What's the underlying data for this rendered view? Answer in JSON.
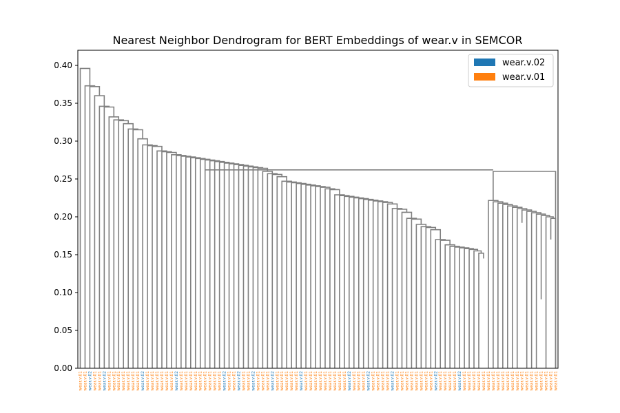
{
  "chart_data": {
    "type": "dendrogram",
    "title": "Nearest Neighbor Dendrogram for BERT Embeddings of wear.v in SEMCOR",
    "xlabel": "",
    "ylabel": "",
    "ylim": [
      0,
      0.42
    ],
    "yticks": [
      "0.00",
      "0.05",
      "0.10",
      "0.15",
      "0.20",
      "0.25",
      "0.30",
      "0.35",
      "0.40"
    ],
    "grid": false,
    "legend": {
      "placement": "top-right",
      "entries": [
        {
          "name": "wear.v.02",
          "color": "#1f77b4"
        },
        {
          "name": "wear.v.01",
          "color": "#ff7f0e"
        }
      ]
    },
    "colors": {
      "line": "#808080",
      "axis": "#000000"
    },
    "leaves": [
      {
        "label": "wear.v.01",
        "sense": "01"
      },
      {
        "label": "wear.v.01",
        "sense": "01"
      },
      {
        "label": "wear.v.02",
        "sense": "02"
      },
      {
        "label": "wear.v.01",
        "sense": "01"
      },
      {
        "label": "wear.v.01",
        "sense": "01"
      },
      {
        "label": "wear.v.02",
        "sense": "02"
      },
      {
        "label": "wear.v.01",
        "sense": "01"
      },
      {
        "label": "wear.v.01",
        "sense": "01"
      },
      {
        "label": "wear.v.01",
        "sense": "01"
      },
      {
        "label": "wear.v.01",
        "sense": "01"
      },
      {
        "label": "wear.v.01",
        "sense": "01"
      },
      {
        "label": "wear.v.01",
        "sense": "01"
      },
      {
        "label": "wear.v.01",
        "sense": "01"
      },
      {
        "label": "wear.v.02",
        "sense": "02"
      },
      {
        "label": "wear.v.01",
        "sense": "01"
      },
      {
        "label": "wear.v.01",
        "sense": "01"
      },
      {
        "label": "wear.v.01",
        "sense": "01"
      },
      {
        "label": "wear.v.01",
        "sense": "01"
      },
      {
        "label": "wear.v.01",
        "sense": "01"
      },
      {
        "label": "wear.v.01",
        "sense": "01"
      },
      {
        "label": "wear.v.02",
        "sense": "02"
      },
      {
        "label": "wear.v.01",
        "sense": "01"
      },
      {
        "label": "wear.v.01",
        "sense": "01"
      },
      {
        "label": "wear.v.01",
        "sense": "01"
      },
      {
        "label": "wear.v.01",
        "sense": "01"
      },
      {
        "label": "wear.v.01",
        "sense": "01"
      },
      {
        "label": "wear.v.01",
        "sense": "01"
      },
      {
        "label": "wear.v.01",
        "sense": "01"
      },
      {
        "label": "wear.v.01",
        "sense": "01"
      },
      {
        "label": "wear.v.01",
        "sense": "01"
      },
      {
        "label": "wear.v.02",
        "sense": "02"
      },
      {
        "label": "wear.v.01",
        "sense": "01"
      },
      {
        "label": "wear.v.01",
        "sense": "01"
      },
      {
        "label": "wear.v.02",
        "sense": "02"
      },
      {
        "label": "wear.v.01",
        "sense": "01"
      },
      {
        "label": "wear.v.01",
        "sense": "01"
      },
      {
        "label": "wear.v.02",
        "sense": "02"
      },
      {
        "label": "wear.v.01",
        "sense": "01"
      },
      {
        "label": "wear.v.01",
        "sense": "01"
      },
      {
        "label": "wear.v.01",
        "sense": "01"
      },
      {
        "label": "wear.v.02",
        "sense": "02"
      },
      {
        "label": "wear.v.01",
        "sense": "01"
      },
      {
        "label": "wear.v.01",
        "sense": "01"
      },
      {
        "label": "wear.v.01",
        "sense": "01"
      },
      {
        "label": "wear.v.01",
        "sense": "01"
      },
      {
        "label": "wear.v.01",
        "sense": "01"
      },
      {
        "label": "wear.v.02",
        "sense": "02"
      },
      {
        "label": "wear.v.01",
        "sense": "01"
      },
      {
        "label": "wear.v.01",
        "sense": "01"
      },
      {
        "label": "wear.v.01",
        "sense": "01"
      },
      {
        "label": "wear.v.01",
        "sense": "01"
      },
      {
        "label": "wear.v.01",
        "sense": "01"
      },
      {
        "label": "wear.v.01",
        "sense": "01"
      },
      {
        "label": "wear.v.01",
        "sense": "01"
      },
      {
        "label": "wear.v.01",
        "sense": "01"
      },
      {
        "label": "wear.v.01",
        "sense": "01"
      },
      {
        "label": "wear.v.02",
        "sense": "02"
      },
      {
        "label": "wear.v.01",
        "sense": "01"
      },
      {
        "label": "wear.v.01",
        "sense": "01"
      },
      {
        "label": "wear.v.01",
        "sense": "01"
      },
      {
        "label": "wear.v.02",
        "sense": "02"
      },
      {
        "label": "wear.v.01",
        "sense": "01"
      },
      {
        "label": "wear.v.01",
        "sense": "01"
      },
      {
        "label": "wear.v.01",
        "sense": "01"
      },
      {
        "label": "wear.v.01",
        "sense": "01"
      },
      {
        "label": "wear.v.02",
        "sense": "02"
      },
      {
        "label": "wear.v.01",
        "sense": "01"
      },
      {
        "label": "wear.v.01",
        "sense": "01"
      },
      {
        "label": "wear.v.01",
        "sense": "01"
      },
      {
        "label": "wear.v.01",
        "sense": "01"
      },
      {
        "label": "wear.v.01",
        "sense": "01"
      },
      {
        "label": "wear.v.01",
        "sense": "01"
      },
      {
        "label": "wear.v.01",
        "sense": "01"
      },
      {
        "label": "wear.v.01",
        "sense": "01"
      },
      {
        "label": "wear.v.02",
        "sense": "02"
      },
      {
        "label": "wear.v.01",
        "sense": "01"
      },
      {
        "label": "wear.v.01",
        "sense": "01"
      },
      {
        "label": "wear.v.01",
        "sense": "01"
      },
      {
        "label": "wear.v.01",
        "sense": "01"
      },
      {
        "label": "wear.v.02",
        "sense": "02"
      },
      {
        "label": "wear.v.01",
        "sense": "01"
      },
      {
        "label": "wear.v.01",
        "sense": "01"
      },
      {
        "label": "wear.v.01",
        "sense": "01"
      },
      {
        "label": "wear.v.01",
        "sense": "01"
      },
      {
        "label": "wear.v.01",
        "sense": "01"
      },
      {
        "label": "wear.v.01",
        "sense": "01"
      },
      {
        "label": "wear.v.01",
        "sense": "01"
      },
      {
        "label": "wear.v.01",
        "sense": "01"
      },
      {
        "label": "wear.v.01",
        "sense": "01"
      },
      {
        "label": "wear.v.01",
        "sense": "01"
      },
      {
        "label": "wear.v.01",
        "sense": "01"
      },
      {
        "label": "wear.v.01",
        "sense": "01"
      },
      {
        "label": "wear.v.01",
        "sense": "01"
      },
      {
        "label": "wear.v.01",
        "sense": "01"
      },
      {
        "label": "wear.v.01",
        "sense": "01"
      },
      {
        "label": "wear.v.01",
        "sense": "01"
      },
      {
        "label": "wear.v.01",
        "sense": "01"
      },
      {
        "label": "wear.v.01",
        "sense": "01"
      },
      {
        "label": "wear.v.01",
        "sense": "01"
      },
      {
        "label": "wear.v.01",
        "sense": "01"
      }
    ],
    "merges": [
      [
        2,
        3,
        0.0
      ],
      [
        36,
        37,
        0.0
      ],
      [
        66,
        67,
        0.0
      ],
      [
        89,
        90,
        0.085
      ],
      [
        88,
        "m3",
        0.118
      ],
      [
        87,
        "m4",
        0.128
      ],
      [
        86,
        "m5",
        0.133
      ],
      [
        97,
        98,
        0.09
      ],
      [
        80,
        81,
        0.15
      ],
      [
        12,
        13,
        0.18
      ],
      [
        41,
        42,
        0.165
      ],
      [
        56,
        57,
        0.195
      ],
      [
        60,
        61,
        0.192
      ],
      [
        64,
        65,
        0.152
      ],
      [
        15,
        16,
        0.17
      ],
      [
        94,
        95,
        0.17
      ],
      [
        84,
        85,
        0.155
      ],
      [
        24,
        25,
        0.2
      ],
      [
        26,
        27,
        0.195
      ],
      [
        70,
        71,
        0.0
      ],
      [
        98,
        99,
        0.19
      ],
      [
        82,
        83,
        0.15
      ],
      [
        92,
        93,
        0.2
      ]
    ]
  }
}
